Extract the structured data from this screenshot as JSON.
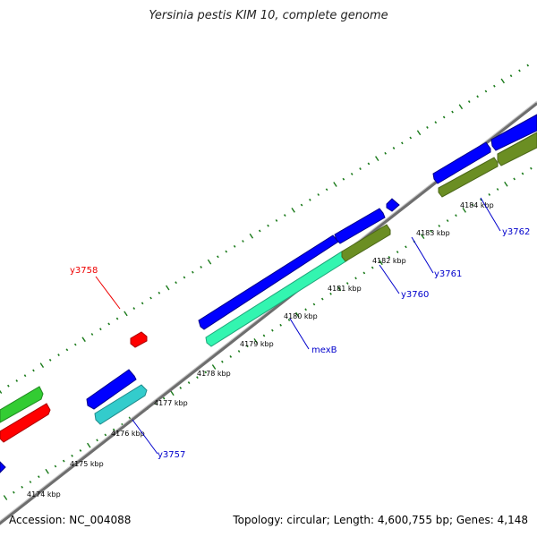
{
  "header": {
    "title": "Yersinia pestis KIM 10, complete genome"
  },
  "footer": {
    "accession": "Accession: NC_004088",
    "topology": "Topology: circular; Length: 4,600,755 bp; Genes: 4,148"
  },
  "colors": {
    "backbone": "#808080",
    "tick": "#1a7a1a",
    "gene_blue": "#0000ff",
    "gene_red": "#ff0000",
    "gene_green": "#33cc33",
    "gene_cyan": "#33cccc",
    "gene_aquamarine": "#33f5b0",
    "gene_olive": "#6b8e23",
    "label_blue": "#0000cc",
    "label_red": "#ee0000"
  },
  "scale_labels": [
    "4174 kbp",
    "4175 kbp",
    "4176 kbp",
    "4177 kbp",
    "4178 kbp",
    "4179 kbp",
    "4180 kbp",
    "4181 kbp",
    "4182 kbp",
    "4183 kbp",
    "4184 kbp"
  ],
  "gene_labels": [
    {
      "id": "y3757",
      "text": "y3757",
      "color": "blue"
    },
    {
      "id": "y3758",
      "text": "y3758",
      "color": "red"
    },
    {
      "id": "mexB",
      "text": "mexB",
      "color": "blue"
    },
    {
      "id": "y3760",
      "text": "y3760",
      "color": "blue"
    },
    {
      "id": "y3761",
      "text": "y3761",
      "color": "blue"
    },
    {
      "id": "y3762",
      "text": "y3762",
      "color": "blue"
    }
  ]
}
